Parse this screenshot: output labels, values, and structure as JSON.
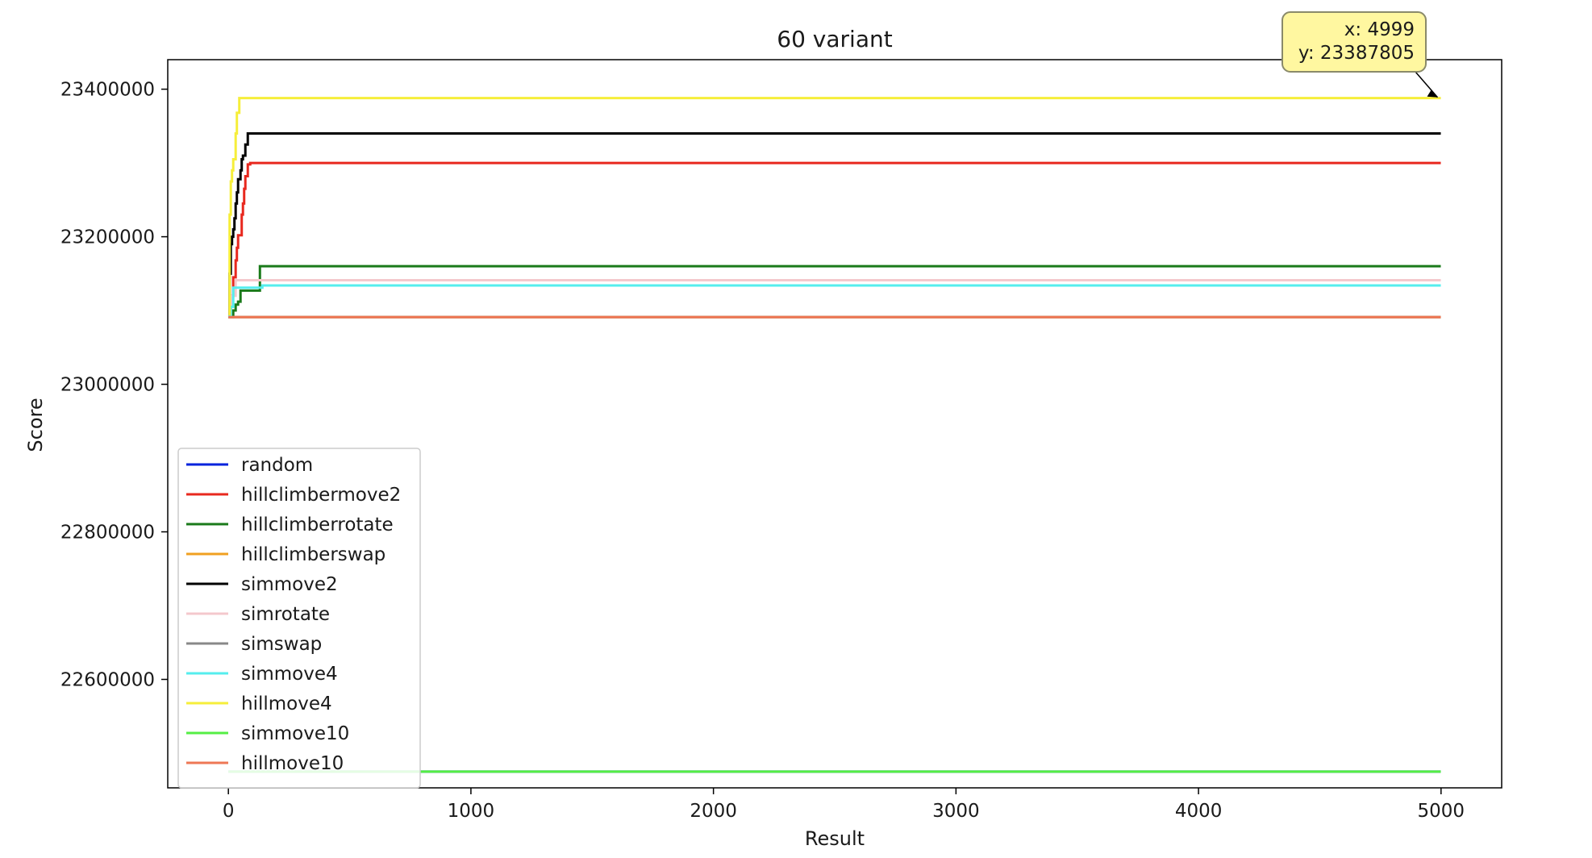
{
  "chart_data": {
    "type": "line",
    "title": "60 variant",
    "xlabel": "Result",
    "ylabel": "Score",
    "xlim": [
      -250,
      5250
    ],
    "ylim": [
      22453000,
      23440000
    ],
    "xticks": [
      0,
      1000,
      2000,
      3000,
      4000,
      5000
    ],
    "xtick_labels": [
      "0",
      "1000",
      "2000",
      "3000",
      "4000",
      "5000"
    ],
    "yticks": [
      22600000,
      22800000,
      23000000,
      23200000,
      23400000
    ],
    "ytick_labels": [
      "22600000",
      "22800000",
      "23000000",
      "23200000",
      "23400000"
    ],
    "grid": false,
    "legend_position": "lower-left",
    "series": [
      {
        "name": "random",
        "color": "#0022dd",
        "x": [
          0,
          4999
        ],
        "y": [
          22475000,
          22475000
        ]
      },
      {
        "name": "hillclimbermove2",
        "color": "#e8281e",
        "x": [
          0,
          10,
          20,
          30,
          35,
          40,
          50,
          55,
          60,
          65,
          70,
          80,
          90,
          4999
        ],
        "y": [
          23092000,
          23120000,
          23145000,
          23168000,
          23185000,
          23202000,
          23202000,
          23230000,
          23245000,
          23265000,
          23282000,
          23298000,
          23300000,
          23300000
        ]
      },
      {
        "name": "hillclimberrotate",
        "color": "#1a7a1a",
        "x": [
          0,
          20,
          30,
          40,
          50,
          60,
          80,
          100,
          120,
          130,
          4999
        ],
        "y": [
          23091000,
          23100000,
          23108000,
          23112000,
          23127000,
          23127000,
          23127000,
          23127000,
          23127000,
          23160000,
          23160000
        ]
      },
      {
        "name": "hillclimberswap",
        "color": "#f0a020",
        "x": [
          0,
          4999
        ],
        "y": [
          23091000,
          23091000
        ]
      },
      {
        "name": "simmove2",
        "color": "#000000",
        "x": [
          0,
          5,
          10,
          15,
          20,
          25,
          30,
          35,
          40,
          50,
          55,
          60,
          70,
          80,
          4999
        ],
        "y": [
          23092000,
          23150000,
          23190000,
          23200000,
          23210000,
          23225000,
          23245000,
          23260000,
          23278000,
          23290000,
          23305000,
          23310000,
          23325000,
          23340000,
          23340000
        ]
      },
      {
        "name": "simrotate",
        "color": "#f4c8cc",
        "x": [
          0,
          10,
          30,
          4999
        ],
        "y": [
          23092000,
          23120000,
          23141000,
          23141000
        ]
      },
      {
        "name": "simswap",
        "color": "#888888",
        "x": [
          0,
          4999
        ],
        "y": [
          23091000,
          23091000
        ]
      },
      {
        "name": "simmove4",
        "color": "#55eeee",
        "x": [
          0,
          10,
          20,
          130,
          140,
          4999
        ],
        "y": [
          23092000,
          23105000,
          23131000,
          23131000,
          23134000,
          23134000
        ]
      },
      {
        "name": "hillmove4",
        "color": "#f6ee3a",
        "x": [
          0,
          5,
          10,
          15,
          20,
          30,
          35,
          45,
          4999
        ],
        "y": [
          23095000,
          23230000,
          23275000,
          23290000,
          23305000,
          23340000,
          23368000,
          23388000,
          23388000
        ]
      },
      {
        "name": "simmove10",
        "color": "#55ee44",
        "x": [
          0,
          4999
        ],
        "y": [
          22475000,
          22475000
        ]
      },
      {
        "name": "hillmove10",
        "color": "#ee7755",
        "x": [
          0,
          4999
        ],
        "y": [
          23091000,
          23091000
        ]
      }
    ],
    "annotation": {
      "x_text": "x: 4999",
      "y_text": "y: 23387805",
      "point_x": 4999,
      "point_y": 23387805,
      "background": "#fff7a0",
      "border": "#8a8a6a"
    }
  }
}
